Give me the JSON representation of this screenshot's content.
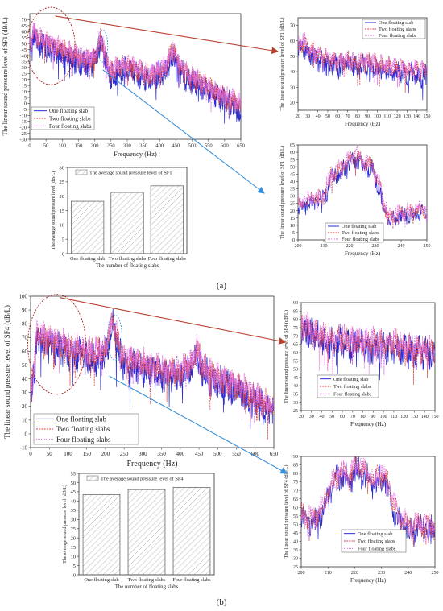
{
  "panels": [
    {
      "panel_label": "(a)",
      "main_chart": {
        "type": "line",
        "xlabel": "Frequency (Hz)",
        "ylabel": "The linear sound pressure level of SF1 (dB/L)",
        "xlim": [
          0,
          650
        ],
        "ylim": [
          -30,
          75
        ],
        "xticks": [
          0,
          50,
          100,
          150,
          200,
          250,
          300,
          350,
          400,
          450,
          500,
          550,
          600,
          650
        ],
        "yticks": [
          -30,
          -25,
          -20,
          -15,
          -10,
          -5,
          0,
          5,
          10,
          15,
          20,
          25,
          30,
          35,
          40,
          45,
          50,
          55,
          60,
          65,
          70
        ],
        "legend_position": "bottom-left",
        "series": [
          {
            "name": "One floating slab",
            "color": "#2b2bd6",
            "style": "solid"
          },
          {
            "name": "Two floating slabs",
            "color": "#d94040",
            "style": "dashed"
          },
          {
            "name": "Four floating slabs",
            "color": "#e070e0",
            "style": "dotted"
          }
        ],
        "envelope": [
          [
            5,
            50
          ],
          [
            12,
            62
          ],
          [
            20,
            55
          ],
          [
            40,
            52
          ],
          [
            60,
            50
          ],
          [
            80,
            47
          ],
          [
            100,
            45
          ],
          [
            120,
            42
          ],
          [
            140,
            40
          ],
          [
            160,
            38
          ],
          [
            180,
            36
          ],
          [
            200,
            38
          ],
          [
            220,
            55
          ],
          [
            230,
            42
          ],
          [
            250,
            25
          ],
          [
            270,
            30
          ],
          [
            300,
            32
          ],
          [
            330,
            28
          ],
          [
            350,
            25
          ],
          [
            370,
            22
          ],
          [
            400,
            28
          ],
          [
            420,
            30
          ],
          [
            440,
            45
          ],
          [
            460,
            32
          ],
          [
            480,
            25
          ],
          [
            500,
            22
          ],
          [
            520,
            18
          ],
          [
            540,
            15
          ],
          [
            560,
            12
          ],
          [
            580,
            8
          ],
          [
            600,
            5
          ],
          [
            620,
            2
          ],
          [
            640,
            0
          ],
          [
            650,
            -2
          ]
        ]
      },
      "zoom_low": {
        "type": "line",
        "xlabel": "Frequency (Hz)",
        "ylabel": "The linear sound pressure level of SF1 (dB/L)",
        "xlim": [
          20,
          150
        ],
        "ylim": [
          15,
          75
        ],
        "xticks": [
          20,
          30,
          40,
          50,
          60,
          70,
          80,
          90,
          100,
          110,
          120,
          130,
          140,
          150
        ],
        "yticks": [
          20,
          30,
          40,
          50,
          60,
          70
        ],
        "legend_position": "top-right",
        "envelope": [
          [
            20,
            55
          ],
          [
            25,
            60
          ],
          [
            30,
            55
          ],
          [
            40,
            50
          ],
          [
            50,
            48
          ],
          [
            60,
            46
          ],
          [
            70,
            47
          ],
          [
            80,
            45
          ],
          [
            90,
            46
          ],
          [
            100,
            44
          ],
          [
            110,
            43
          ],
          [
            120,
            42
          ],
          [
            130,
            41
          ],
          [
            140,
            40
          ],
          [
            150,
            40
          ]
        ]
      },
      "zoom_high": {
        "type": "line",
        "xlabel": "Frequency (Hz)",
        "ylabel": "The linear sound pressure level of SF1 (dB/L)",
        "xlim": [
          200,
          250
        ],
        "ylim": [
          0,
          65
        ],
        "xticks": [
          200,
          210,
          220,
          230,
          240,
          250
        ],
        "yticks": [
          0,
          5,
          10,
          15,
          20,
          25,
          30,
          35,
          40,
          45,
          50,
          55,
          60,
          65
        ],
        "legend_position": "bottom-right",
        "envelope": [
          [
            200,
            25
          ],
          [
            205,
            28
          ],
          [
            210,
            30
          ],
          [
            213,
            45
          ],
          [
            217,
            50
          ],
          [
            220,
            55
          ],
          [
            223,
            58
          ],
          [
            226,
            52
          ],
          [
            229,
            50
          ],
          [
            232,
            35
          ],
          [
            235,
            15
          ],
          [
            240,
            18
          ],
          [
            245,
            20
          ],
          [
            250,
            20
          ]
        ]
      },
      "bar_chart": {
        "type": "bar",
        "legend": "The average sound pressure level of SF1",
        "xlabel": "The number of floating slabs",
        "ylabel": "The average sound pressure level (dB/L)",
        "ylim": [
          0,
          30
        ],
        "yticks": [
          0,
          5,
          10,
          15,
          20,
          25,
          30
        ],
        "categories": [
          "One floating slab",
          "Two floating slabs",
          "Four floating slabs"
        ],
        "values": [
          18.2,
          21.3,
          23.6
        ]
      }
    },
    {
      "panel_label": "(b)",
      "main_chart": {
        "type": "line",
        "xlabel": "Frequency (Hz)",
        "ylabel": "The linear sound pressure level of SF4 (dB/L)",
        "xlim": [
          0,
          650
        ],
        "ylim": [
          -10,
          100
        ],
        "xticks": [
          0,
          50,
          100,
          150,
          200,
          250,
          300,
          350,
          400,
          450,
          500,
          550,
          600,
          650
        ],
        "yticks": [
          -10,
          0,
          10,
          20,
          30,
          40,
          50,
          60,
          70,
          80,
          90,
          100
        ],
        "legend_position": "bottom-left",
        "series": [
          {
            "name": "One floating slab",
            "color": "#2b2bd6",
            "style": "solid"
          },
          {
            "name": "Two floating slabs",
            "color": "#d94040",
            "style": "dashed"
          },
          {
            "name": "Four floating slabs",
            "color": "#e070e0",
            "style": "dotted"
          }
        ],
        "envelope": [
          [
            5,
            35
          ],
          [
            15,
            70
          ],
          [
            25,
            72
          ],
          [
            50,
            68
          ],
          [
            80,
            65
          ],
          [
            110,
            62
          ],
          [
            140,
            60
          ],
          [
            170,
            58
          ],
          [
            200,
            62
          ],
          [
            220,
            82
          ],
          [
            235,
            65
          ],
          [
            250,
            55
          ],
          [
            280,
            52
          ],
          [
            310,
            50
          ],
          [
            340,
            48
          ],
          [
            370,
            45
          ],
          [
            400,
            45
          ],
          [
            430,
            50
          ],
          [
            445,
            62
          ],
          [
            460,
            48
          ],
          [
            490,
            42
          ],
          [
            520,
            38
          ],
          [
            550,
            35
          ],
          [
            580,
            30
          ],
          [
            610,
            25
          ],
          [
            640,
            20
          ],
          [
            650,
            18
          ]
        ]
      },
      "zoom_low": {
        "type": "line",
        "xlabel": "Frequency (Hz)",
        "ylabel": "The linear sound pressure level of SF4 (dB/L)",
        "xlim": [
          20,
          150
        ],
        "ylim": [
          25,
          90
        ],
        "xticks": [
          20,
          30,
          40,
          50,
          60,
          70,
          80,
          90,
          100,
          110,
          120,
          130,
          140,
          150
        ],
        "yticks": [
          25,
          30,
          35,
          40,
          45,
          50,
          55,
          60,
          65,
          70,
          75,
          80,
          85,
          90
        ],
        "legend_position": "bottom-right",
        "envelope": [
          [
            20,
            72
          ],
          [
            25,
            78
          ],
          [
            30,
            72
          ],
          [
            40,
            70
          ],
          [
            50,
            68
          ],
          [
            60,
            68
          ],
          [
            70,
            67
          ],
          [
            80,
            66
          ],
          [
            90,
            66
          ],
          [
            100,
            64
          ],
          [
            110,
            65
          ],
          [
            120,
            63
          ],
          [
            130,
            62
          ],
          [
            140,
            62
          ],
          [
            150,
            60
          ]
        ]
      },
      "zoom_high": {
        "type": "line",
        "xlabel": "Frequency (Hz)",
        "ylabel": "The linear sound pressure level of SF4 (dB/L)",
        "xlim": [
          200,
          250
        ],
        "ylim": [
          25,
          90
        ],
        "xticks": [
          200,
          210,
          220,
          230,
          240,
          250
        ],
        "yticks": [
          25,
          30,
          35,
          40,
          45,
          50,
          55,
          60,
          65,
          70,
          75,
          80,
          85,
          90
        ],
        "legend_position": "bottom-right",
        "envelope": [
          [
            200,
            55
          ],
          [
            205,
            52
          ],
          [
            208,
            60
          ],
          [
            212,
            75
          ],
          [
            215,
            82
          ],
          [
            218,
            78
          ],
          [
            221,
            85
          ],
          [
            224,
            80
          ],
          [
            227,
            74
          ],
          [
            230,
            80
          ],
          [
            233,
            72
          ],
          [
            236,
            55
          ],
          [
            240,
            48
          ],
          [
            245,
            50
          ],
          [
            250,
            48
          ]
        ]
      },
      "bar_chart": {
        "type": "bar",
        "legend": "The average sound pressure level of SF4",
        "xlabel": "The number of floating slabs",
        "ylabel": "The average sound pressure level (dB/L)",
        "ylim": [
          0,
          55
        ],
        "yticks": [
          0,
          5,
          10,
          15,
          20,
          25,
          30,
          35,
          40,
          45,
          50,
          55
        ],
        "categories": [
          "One floating slab",
          "Two floating slabs",
          "Four floating slabs"
        ],
        "values": [
          43.5,
          46.2,
          47.4
        ]
      }
    }
  ]
}
